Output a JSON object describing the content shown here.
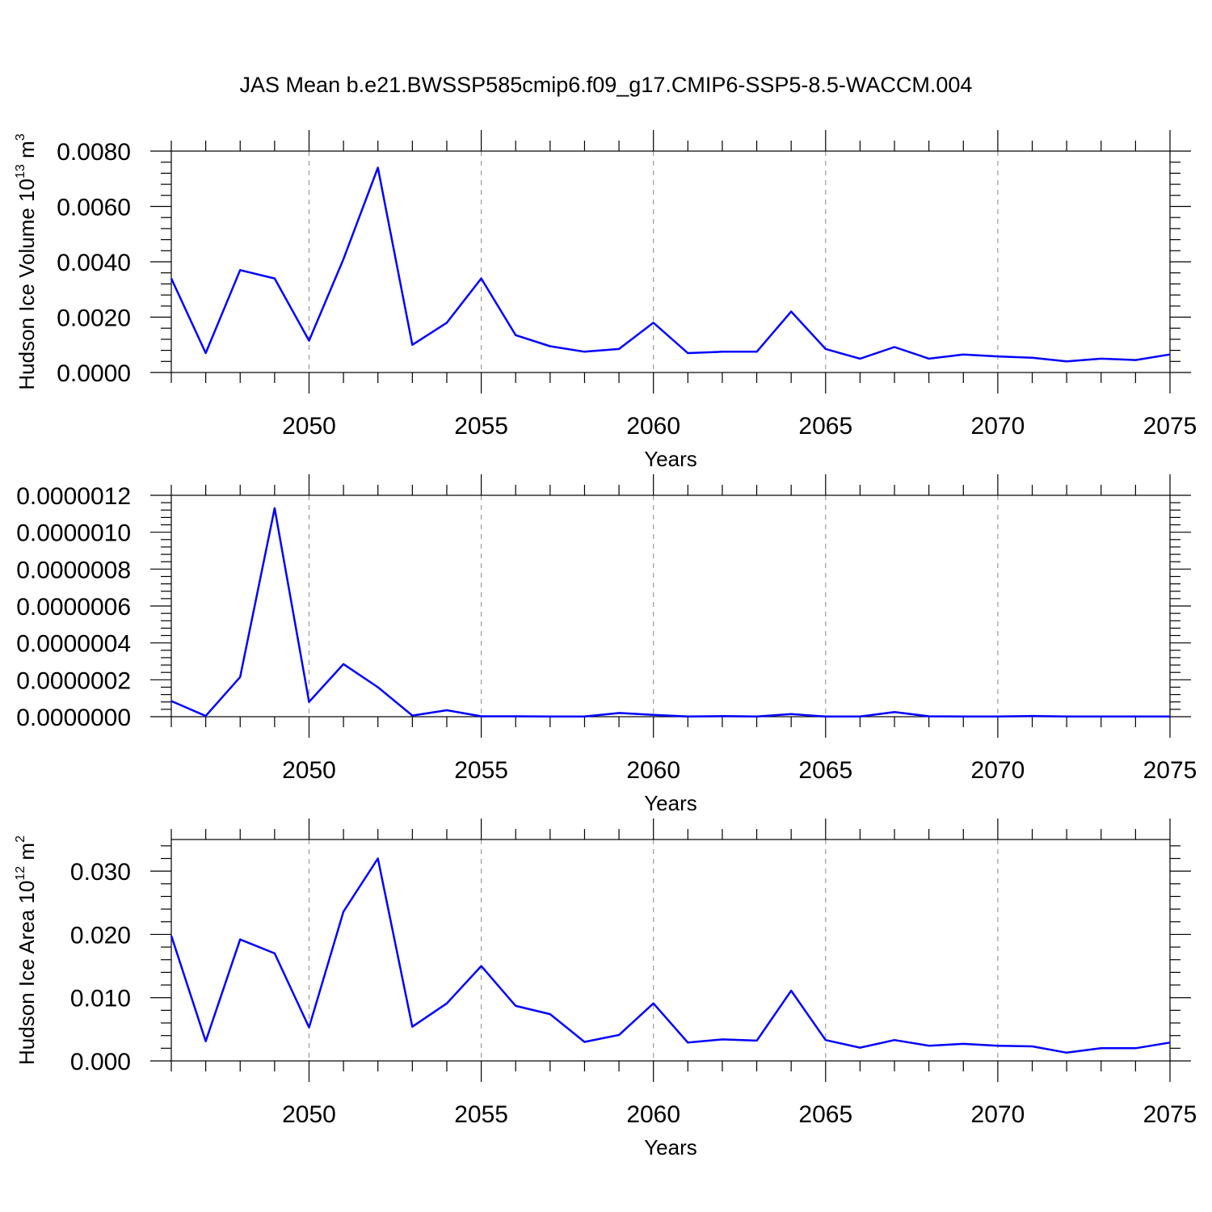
{
  "title": "JAS Mean b.e21.BWSSP585cmip6.f09_g17.CMIP6-SSP5-8.5-WACCM.004",
  "colors": {
    "line": "#0000ff",
    "grid": "#9a9a9a",
    "frame": "#000000"
  },
  "chart_data": [
    {
      "type": "line",
      "ylabel": "Hudson Ice Volume 10",
      "ylabel_sup": "13",
      "ylabel_unit": "m",
      "ylabel_unit_sup": "3",
      "xlabel": "Years",
      "xlim": [
        2046,
        2075
      ],
      "ylim": [
        0,
        0.008
      ],
      "xticks": [
        "2050",
        "2055",
        "2060",
        "2065",
        "2070",
        "2075"
      ],
      "yticks": [
        "0.0000",
        "0.0020",
        "0.0040",
        "0.0060",
        "0.0080"
      ],
      "grid": "vertical dashed at major x ticks",
      "series": [
        {
          "x": [
            2046,
            2047,
            2048,
            2049,
            2050,
            2051,
            2052,
            2053,
            2054,
            2055,
            2056,
            2057,
            2058,
            2059,
            2060,
            2061,
            2062,
            2063,
            2064,
            2065,
            2066,
            2067,
            2068,
            2069,
            2070,
            2071,
            2072,
            2073,
            2074,
            2075
          ],
          "values": [
            0.0034,
            0.0007,
            0.0037,
            0.0034,
            0.00115,
            0.0041,
            0.0074,
            0.001,
            0.0018,
            0.0034,
            0.00135,
            0.00095,
            0.00075,
            0.00085,
            0.0018,
            0.0007,
            0.00075,
            0.00075,
            0.0022,
            0.00085,
            0.0005,
            0.00092,
            0.0005,
            0.00065,
            0.00058,
            0.00053,
            0.0004,
            0.0005,
            0.00045,
            0.00065
          ]
        }
      ]
    },
    {
      "type": "line",
      "ylabel": "",
      "xlabel": "Years",
      "xlim": [
        2046,
        2075
      ],
      "ylim": [
        0,
        1.2e-06
      ],
      "xticks": [
        "2050",
        "2055",
        "2060",
        "2065",
        "2070",
        "2075"
      ],
      "yticks": [
        "0.0000000",
        "0.0000002",
        "0.0000004",
        "0.0000006",
        "0.0000008",
        "0.0000010",
        "0.0000012"
      ],
      "grid": "vertical dashed at major x ticks",
      "series": [
        {
          "x": [
            2046,
            2047,
            2048,
            2049,
            2050,
            2051,
            2052,
            2053,
            2054,
            2055,
            2056,
            2057,
            2058,
            2059,
            2060,
            2061,
            2062,
            2063,
            2064,
            2065,
            2066,
            2067,
            2068,
            2069,
            2070,
            2071,
            2072,
            2073,
            2074,
            2075
          ],
          "values": [
            8.5e-08,
            4e-09,
            2.15e-07,
            1.13e-06,
            8e-08,
            2.85e-07,
            1.6e-07,
            6e-09,
            3.5e-08,
            2e-09,
            2e-09,
            1e-09,
            1e-09,
            2e-08,
            1e-08,
            1e-09,
            3e-09,
            1e-09,
            1.4e-08,
            1e-09,
            1e-09,
            2.5e-08,
            2e-09,
            1e-09,
            1e-09,
            4e-09,
            1e-09,
            1e-09,
            1e-09,
            1e-09
          ]
        }
      ]
    },
    {
      "type": "line",
      "ylabel": "Hudson Ice Area 10",
      "ylabel_sup": "12",
      "ylabel_unit": "m",
      "ylabel_unit_sup": "2",
      "xlabel": "Years",
      "xlim": [
        2046,
        2075
      ],
      "ylim": [
        0,
        0.035
      ],
      "xticks": [
        "2050",
        "2055",
        "2060",
        "2065",
        "2070",
        "2075"
      ],
      "yticks": [
        "0.000",
        "0.010",
        "0.020",
        "0.030"
      ],
      "grid": "vertical dashed at major x ticks",
      "series": [
        {
          "x": [
            2046,
            2047,
            2048,
            2049,
            2050,
            2051,
            2052,
            2053,
            2054,
            2055,
            2056,
            2057,
            2058,
            2059,
            2060,
            2061,
            2062,
            2063,
            2064,
            2065,
            2066,
            2067,
            2068,
            2069,
            2070,
            2071,
            2072,
            2073,
            2074,
            2075
          ],
          "values": [
            0.0198,
            0.0031,
            0.0192,
            0.017,
            0.0053,
            0.0236,
            0.032,
            0.0054,
            0.0091,
            0.015,
            0.0087,
            0.0074,
            0.003,
            0.0041,
            0.0091,
            0.0029,
            0.0034,
            0.0032,
            0.0111,
            0.0033,
            0.0021,
            0.0033,
            0.0024,
            0.0027,
            0.0024,
            0.0023,
            0.0013,
            0.002,
            0.002,
            0.0029
          ]
        }
      ]
    }
  ]
}
